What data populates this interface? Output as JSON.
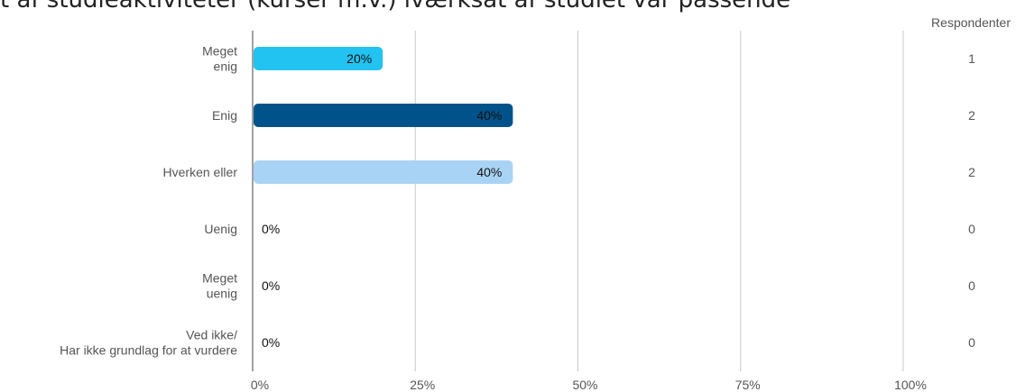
{
  "chart_data": {
    "type": "bar",
    "orientation": "horizontal",
    "title": "t af studieaktiviteter (kurser m.v.) iværksat af studiet var passende",
    "count_header": "Respondenter",
    "categories": [
      [
        "Meget",
        "enig"
      ],
      [
        "Enig"
      ],
      [
        "Hverken eller"
      ],
      [
        "Uenig"
      ],
      [
        "Meget",
        "uenig"
      ],
      [
        "Ved ikke/",
        "Har ikke grundlag for at vurdere"
      ]
    ],
    "values": [
      20,
      40,
      40,
      0,
      0,
      0
    ],
    "value_labels": [
      "20%",
      "40%",
      "40%",
      "0%",
      "0%",
      "0%"
    ],
    "respondents": [
      "1",
      "2",
      "2",
      "0",
      "0",
      "0"
    ],
    "bar_colors": [
      "#22c3f0",
      "#00538a",
      "#a9d3f5",
      "#cccccc",
      "#cccccc",
      "#cccccc"
    ],
    "x_ticks": [
      0,
      25,
      50,
      75,
      100
    ],
    "x_tick_labels": [
      "0%",
      "25%",
      "50%",
      "75%",
      "100%"
    ],
    "xlim": [
      0,
      100
    ],
    "grid": true,
    "legend": "none"
  }
}
